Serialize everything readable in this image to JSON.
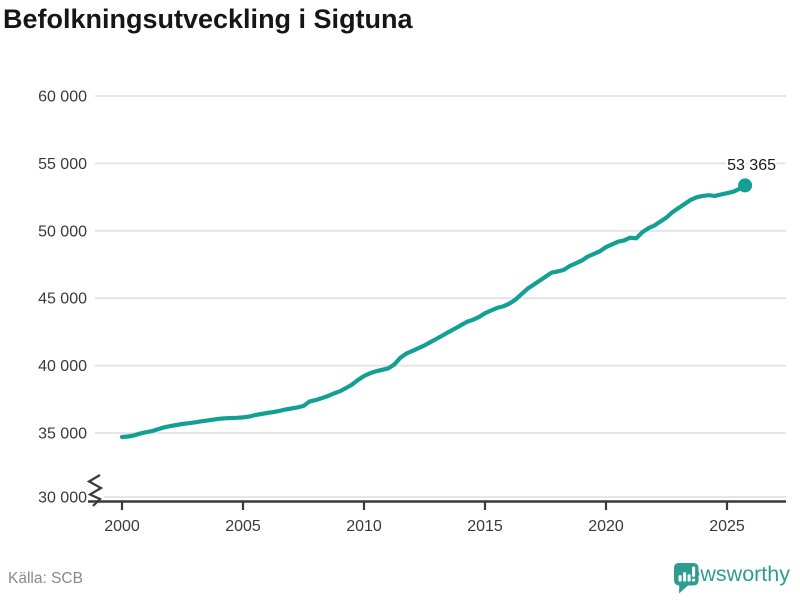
{
  "title": "Befolkningsutveckling i Sigtuna",
  "footer": {
    "source": "Källa: SCB",
    "brand_name": "Newsworthy"
  },
  "colors": {
    "line": "#12A094",
    "grid": "#E3E3E3",
    "axis": "#3a3a3a",
    "title_text": "#161616",
    "source_text": "#8a8a8a",
    "brand_teal": "#2E9D90"
  },
  "chart_data": {
    "type": "line",
    "title": "Befolkningsutveckling i Sigtuna",
    "xlabel": "",
    "ylabel": "",
    "grid": true,
    "axis_break_below": 30000,
    "xlim": [
      1998.6,
      2027.4
    ],
    "ylim": [
      30000,
      60000
    ],
    "x_ticks": [
      {
        "label": "2000",
        "value": 2000
      },
      {
        "label": "2005",
        "value": 2005
      },
      {
        "label": "2010",
        "value": 2010
      },
      {
        "label": "2015",
        "value": 2015
      },
      {
        "label": "2020",
        "value": 2020
      },
      {
        "label": "2025",
        "value": 2025
      }
    ],
    "y_ticks": [
      {
        "label": "60 000",
        "value": 60000
      },
      {
        "label": "55 000",
        "value": 55000
      },
      {
        "label": "50 000",
        "value": 50000
      },
      {
        "label": "45 000",
        "value": 45000
      },
      {
        "label": "40 000",
        "value": 40000
      },
      {
        "label": "35 000",
        "value": 35000
      },
      {
        "label": "30 000",
        "value": 30000,
        "broken": true
      }
    ],
    "last_point": {
      "x": 2025.75,
      "y": 53365
    },
    "last_point_label": "53 365",
    "series": [
      {
        "color": "#12A094",
        "points": [
          [
            2000.0,
            34700
          ],
          [
            2000.25,
            34740
          ],
          [
            2000.5,
            34820
          ],
          [
            2000.75,
            34960
          ],
          [
            2001.0,
            35060
          ],
          [
            2001.25,
            35150
          ],
          [
            2001.5,
            35290
          ],
          [
            2001.75,
            35420
          ],
          [
            2002.0,
            35510
          ],
          [
            2002.25,
            35590
          ],
          [
            2002.5,
            35670
          ],
          [
            2002.75,
            35730
          ],
          [
            2003.0,
            35790
          ],
          [
            2003.25,
            35860
          ],
          [
            2003.5,
            35920
          ],
          [
            2003.75,
            35990
          ],
          [
            2004.0,
            36050
          ],
          [
            2004.25,
            36090
          ],
          [
            2004.5,
            36110
          ],
          [
            2004.75,
            36130
          ],
          [
            2005.0,
            36160
          ],
          [
            2005.25,
            36220
          ],
          [
            2005.5,
            36330
          ],
          [
            2005.75,
            36410
          ],
          [
            2006.0,
            36480
          ],
          [
            2006.25,
            36550
          ],
          [
            2006.5,
            36640
          ],
          [
            2006.75,
            36740
          ],
          [
            2007.0,
            36820
          ],
          [
            2007.25,
            36900
          ],
          [
            2007.5,
            37000
          ],
          [
            2007.75,
            37340
          ],
          [
            2008.0,
            37440
          ],
          [
            2008.25,
            37580
          ],
          [
            2008.5,
            37740
          ],
          [
            2008.75,
            37930
          ],
          [
            2009.0,
            38090
          ],
          [
            2009.25,
            38330
          ],
          [
            2009.5,
            38580
          ],
          [
            2009.75,
            38930
          ],
          [
            2010.0,
            39230
          ],
          [
            2010.25,
            39430
          ],
          [
            2010.5,
            39580
          ],
          [
            2010.75,
            39690
          ],
          [
            2011.0,
            39790
          ],
          [
            2011.25,
            40080
          ],
          [
            2011.5,
            40580
          ],
          [
            2011.75,
            40890
          ],
          [
            2012.0,
            41090
          ],
          [
            2012.25,
            41290
          ],
          [
            2012.5,
            41500
          ],
          [
            2012.75,
            41750
          ],
          [
            2013.0,
            41990
          ],
          [
            2013.25,
            42240
          ],
          [
            2013.5,
            42490
          ],
          [
            2013.75,
            42740
          ],
          [
            2014.0,
            42990
          ],
          [
            2014.25,
            43240
          ],
          [
            2014.5,
            43400
          ],
          [
            2014.75,
            43600
          ],
          [
            2015.0,
            43890
          ],
          [
            2015.25,
            44090
          ],
          [
            2015.5,
            44280
          ],
          [
            2015.75,
            44390
          ],
          [
            2016.0,
            44590
          ],
          [
            2016.25,
            44890
          ],
          [
            2016.5,
            45290
          ],
          [
            2016.75,
            45690
          ],
          [
            2017.0,
            45990
          ],
          [
            2017.25,
            46290
          ],
          [
            2017.5,
            46590
          ],
          [
            2017.75,
            46890
          ],
          [
            2018.0,
            46990
          ],
          [
            2018.25,
            47090
          ],
          [
            2018.5,
            47390
          ],
          [
            2018.75,
            47590
          ],
          [
            2019.0,
            47790
          ],
          [
            2019.25,
            48090
          ],
          [
            2019.5,
            48290
          ],
          [
            2019.75,
            48490
          ],
          [
            2020.0,
            48790
          ],
          [
            2020.25,
            48990
          ],
          [
            2020.5,
            49190
          ],
          [
            2020.75,
            49290
          ],
          [
            2021.0,
            49490
          ],
          [
            2021.25,
            49440
          ],
          [
            2021.5,
            49890
          ],
          [
            2021.75,
            50190
          ],
          [
            2022.0,
            50390
          ],
          [
            2022.25,
            50690
          ],
          [
            2022.5,
            50990
          ],
          [
            2022.75,
            51390
          ],
          [
            2023.0,
            51690
          ],
          [
            2023.25,
            51990
          ],
          [
            2023.5,
            52290
          ],
          [
            2023.75,
            52490
          ],
          [
            2024.0,
            52590
          ],
          [
            2024.25,
            52640
          ],
          [
            2024.5,
            52590
          ],
          [
            2024.75,
            52690
          ],
          [
            2025.0,
            52790
          ],
          [
            2025.25,
            52890
          ],
          [
            2025.5,
            53090
          ],
          [
            2025.75,
            53365
          ]
        ]
      }
    ]
  }
}
